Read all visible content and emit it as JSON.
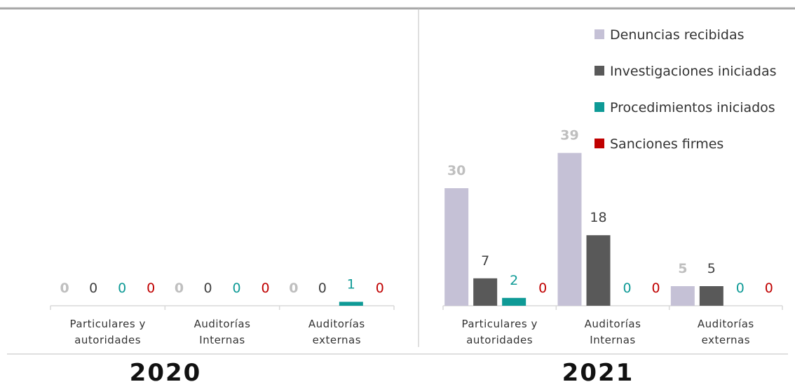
{
  "colors": {
    "denuncias": "#c5c1d6",
    "investigaciones": "#595959",
    "procedimientos": "#0e9a96",
    "sanciones": "#c00000"
  },
  "chart_data": [
    {
      "type": "bar",
      "title": "2020",
      "categories": [
        [
          "Particulares y",
          "autoridades"
        ],
        [
          "Auditorías",
          "Internas"
        ],
        [
          "Auditorías",
          "externas"
        ]
      ],
      "series": [
        {
          "name": "Denuncias recibidas",
          "values": [
            0,
            0,
            0
          ]
        },
        {
          "name": "Investigaciones iniciadas",
          "values": [
            0,
            0,
            0
          ]
        },
        {
          "name": "Procedimientos iniciados",
          "values": [
            0,
            0,
            1
          ]
        },
        {
          "name": "Sanciones firmes",
          "values": [
            0,
            0,
            0
          ]
        }
      ]
    },
    {
      "type": "bar",
      "title": "2021",
      "categories": [
        [
          "Particulares y",
          "autoridades"
        ],
        [
          "Auditorías",
          "Internas"
        ],
        [
          "Auditorías",
          "externas"
        ]
      ],
      "series": [
        {
          "name": "Denuncias recibidas",
          "values": [
            30,
            39,
            5
          ]
        },
        {
          "name": "Investigaciones iniciadas",
          "values": [
            7,
            18,
            5
          ]
        },
        {
          "name": "Procedimientos iniciados",
          "values": [
            2,
            0,
            0
          ]
        },
        {
          "name": "Sanciones firmes",
          "values": [
            0,
            0,
            0
          ]
        }
      ],
      "legend": "top-right"
    }
  ]
}
